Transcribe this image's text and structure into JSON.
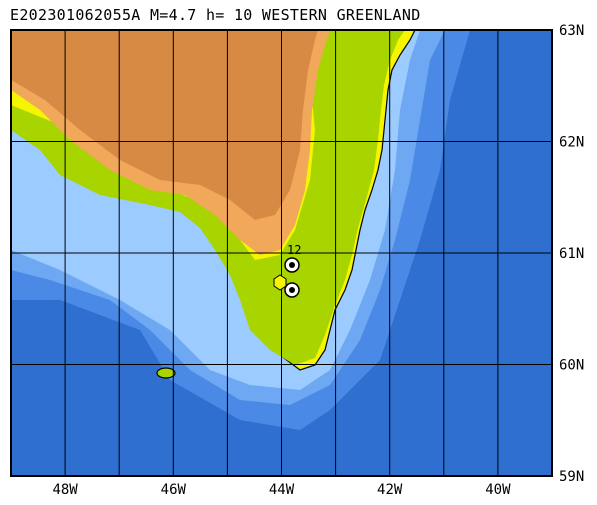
{
  "header": {
    "title": "E202301062055A M=4.7 h= 10 WESTERN GREENLAND"
  },
  "map": {
    "lon_range": [
      -49,
      -39
    ],
    "lat_range": [
      59,
      63
    ],
    "lon_ticks": [
      {
        "value": -48,
        "label": "48W"
      },
      {
        "value": -46,
        "label": "46W"
      },
      {
        "value": -44,
        "label": "44W"
      },
      {
        "value": -42,
        "label": "42W"
      },
      {
        "value": -40,
        "label": "40W"
      }
    ],
    "lat_ticks": [
      {
        "value": 63,
        "label": "63N"
      },
      {
        "value": 62,
        "label": "62N"
      },
      {
        "value": 61,
        "label": "61N"
      },
      {
        "value": 60,
        "label": "60N"
      },
      {
        "value": 59,
        "label": "59N"
      }
    ],
    "station_label": "12",
    "colors": {
      "deep_ocean": "#2e6fd0",
      "mid_ocean": "#4a8ae6",
      "shelf": "#6ea8f2",
      "shallow": "#9ccbff",
      "lowland": "#f5f500",
      "green": "#a8d400",
      "highland": "#f2a85a",
      "ice": "#d68a44",
      "coast": "#000000"
    }
  }
}
